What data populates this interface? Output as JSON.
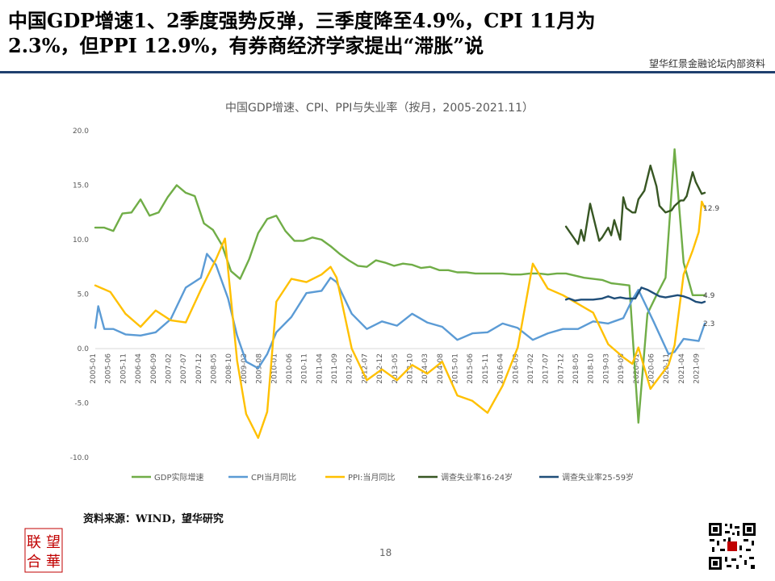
{
  "header": {
    "title_line1": "中国GDP增速1、2季度强势反弹，三季度降至4.9%，CPI 11月为",
    "title_line2": "2.3%，但PPI 12.9%，有券商经济学家提出“滞胀”说",
    "watermark": "望华红景金融论坛内部资料"
  },
  "footer": {
    "source": "资料来源：WIND，望华研究",
    "page_number": "18",
    "logo_text": [
      "联",
      "望",
      "合",
      "華"
    ]
  },
  "colors": {
    "gdp": "#70ad47",
    "cpi": "#5b9bd5",
    "ppi": "#ffc000",
    "youth": "#375623",
    "adult": "#1f4e79",
    "rule": "#1f3f6e",
    "seal": "#c00000"
  },
  "chart_data": {
    "type": "line",
    "title": "中国GDP增速、CPI、PPI与失业率（按月，2005-2021.11）",
    "ylim": [
      -10,
      20
    ],
    "yticks": [
      "20.0",
      "15.0",
      "10.0",
      "5.0",
      "0.0",
      "-5.0",
      "-10.0"
    ],
    "grid": false,
    "legend_position": "bottom",
    "x_start": "2005-01",
    "x_end": "2021-11",
    "x_tick_labels": [
      "2005-01",
      "2005-06",
      "2005-11",
      "2006-04",
      "2006-09",
      "2007-02",
      "2007-07",
      "2007-12",
      "2008-05",
      "2008-10",
      "2009-03",
      "2009-08",
      "2010-01",
      "2010-06",
      "2010-11",
      "2011-04",
      "2011-09",
      "2012-02",
      "2012-07",
      "2012-12",
      "2013-05",
      "2013-10",
      "2014-03",
      "2014-08",
      "2015-01",
      "2015-06",
      "2015-11",
      "2016-04",
      "2016-09",
      "2017-02",
      "2017-07",
      "2017-12",
      "2018-05",
      "2018-10",
      "2019-03",
      "2019-08",
      "2020-01",
      "2020-06",
      "2020-11",
      "2021-04",
      "2021-09"
    ],
    "series": [
      {
        "name": "GDP实际增速",
        "x": [
          "2005-01",
          "2005-04",
          "2005-07",
          "2005-10",
          "2006-01",
          "2006-04",
          "2006-07",
          "2006-10",
          "2007-01",
          "2007-04",
          "2007-07",
          "2007-10",
          "2008-01",
          "2008-04",
          "2008-07",
          "2008-10",
          "2009-01",
          "2009-04",
          "2009-07",
          "2009-10",
          "2010-01",
          "2010-04",
          "2010-07",
          "2010-10",
          "2011-01",
          "2011-04",
          "2011-07",
          "2011-10",
          "2012-01",
          "2012-04",
          "2012-07",
          "2012-10",
          "2013-01",
          "2013-04",
          "2013-07",
          "2013-10",
          "2014-01",
          "2014-04",
          "2014-07",
          "2014-10",
          "2015-01",
          "2015-04",
          "2015-07",
          "2015-10",
          "2016-01",
          "2016-04",
          "2016-07",
          "2016-10",
          "2017-01",
          "2017-04",
          "2017-07",
          "2017-10",
          "2018-01",
          "2018-04",
          "2018-07",
          "2018-10",
          "2019-01",
          "2019-04",
          "2019-07",
          "2019-10",
          "2020-01",
          "2020-04",
          "2020-07",
          "2020-10",
          "2021-01",
          "2021-04",
          "2021-07",
          "2021-10",
          "2021-11"
        ],
        "values": [
          11.1,
          11.1,
          10.8,
          12.4,
          12.5,
          13.7,
          12.2,
          12.5,
          13.9,
          15.0,
          14.3,
          14.0,
          11.5,
          10.9,
          9.5,
          7.1,
          6.4,
          8.2,
          10.6,
          11.9,
          12.2,
          10.8,
          9.9,
          9.9,
          10.2,
          10.0,
          9.4,
          8.7,
          8.1,
          7.6,
          7.5,
          8.1,
          7.9,
          7.6,
          7.8,
          7.7,
          7.4,
          7.5,
          7.2,
          7.2,
          7.0,
          7.0,
          6.9,
          6.9,
          6.9,
          6.9,
          6.8,
          6.8,
          6.9,
          6.9,
          6.8,
          6.9,
          6.9,
          6.7,
          6.5,
          6.4,
          6.3,
          6.0,
          5.9,
          5.8,
          -6.8,
          3.2,
          4.9,
          6.5,
          18.3,
          7.9,
          4.9,
          4.9,
          4.9
        ],
        "end_label": "4.9"
      },
      {
        "name": "CPI当月同比",
        "x": [
          "2005-01",
          "2005-02",
          "2005-04",
          "2005-07",
          "2005-11",
          "2006-04",
          "2006-09",
          "2007-02",
          "2007-07",
          "2007-12",
          "2008-02",
          "2008-05",
          "2008-09",
          "2008-12",
          "2009-03",
          "2009-07",
          "2009-10",
          "2010-01",
          "2010-06",
          "2010-11",
          "2011-04",
          "2011-07",
          "2011-09",
          "2012-02",
          "2012-07",
          "2012-12",
          "2013-05",
          "2013-10",
          "2014-03",
          "2014-08",
          "2015-01",
          "2015-06",
          "2015-11",
          "2016-04",
          "2016-09",
          "2017-02",
          "2017-07",
          "2017-12",
          "2018-05",
          "2018-10",
          "2019-03",
          "2019-08",
          "2019-11",
          "2020-01",
          "2020-06",
          "2020-11",
          "2021-01",
          "2021-04",
          "2021-09",
          "2021-11"
        ],
        "values": [
          1.9,
          3.9,
          1.8,
          1.8,
          1.3,
          1.2,
          1.5,
          2.7,
          5.6,
          6.5,
          8.7,
          7.7,
          4.6,
          1.2,
          -1.2,
          -1.8,
          -0.5,
          1.5,
          2.9,
          5.1,
          5.3,
          6.5,
          6.1,
          3.2,
          1.8,
          2.5,
          2.1,
          3.2,
          2.4,
          2.0,
          0.8,
          1.4,
          1.5,
          2.3,
          1.9,
          0.8,
          1.4,
          1.8,
          1.8,
          2.5,
          2.3,
          2.8,
          4.5,
          5.4,
          2.5,
          -0.5,
          -0.3,
          0.9,
          0.7,
          2.3
        ],
        "end_label": "2.3"
      },
      {
        "name": "PPI:当月同比",
        "x": [
          "2005-01",
          "2005-06",
          "2005-11",
          "2006-04",
          "2006-09",
          "2007-02",
          "2007-07",
          "2007-12",
          "2008-05",
          "2008-08",
          "2008-12",
          "2009-03",
          "2009-07",
          "2009-10",
          "2010-01",
          "2010-06",
          "2010-11",
          "2011-04",
          "2011-07",
          "2011-09",
          "2012-02",
          "2012-07",
          "2012-12",
          "2013-05",
          "2013-10",
          "2014-03",
          "2014-08",
          "2015-01",
          "2015-06",
          "2015-11",
          "2016-04",
          "2016-09",
          "2017-02",
          "2017-07",
          "2017-12",
          "2018-05",
          "2018-10",
          "2019-03",
          "2019-08",
          "2019-11",
          "2020-01",
          "2020-05",
          "2020-11",
          "2021-01",
          "2021-04",
          "2021-07",
          "2021-09",
          "2021-10",
          "2021-11"
        ],
        "values": [
          5.8,
          5.2,
          3.2,
          2.0,
          3.5,
          2.6,
          2.4,
          5.4,
          8.2,
          10.1,
          -1.1,
          -6.0,
          -8.2,
          -5.8,
          4.3,
          6.4,
          6.1,
          6.8,
          7.5,
          6.5,
          0.0,
          -2.9,
          -1.9,
          -2.9,
          -1.5,
          -2.3,
          -1.2,
          -4.3,
          -4.8,
          -5.9,
          -3.4,
          0.1,
          7.8,
          5.5,
          4.9,
          4.1,
          3.3,
          0.4,
          -0.8,
          -1.4,
          0.1,
          -3.7,
          -1.5,
          0.3,
          6.8,
          9.0,
          10.7,
          13.5,
          12.9
        ],
        "end_label": "12.9"
      },
      {
        "name": "调查失业率16-24岁",
        "x": [
          "2018-01",
          "2018-04",
          "2018-05",
          "2018-06",
          "2018-07",
          "2018-09",
          "2018-12",
          "2019-01",
          "2019-03",
          "2019-04",
          "2019-05",
          "2019-07",
          "2019-08",
          "2019-09",
          "2019-11",
          "2019-12",
          "2020-01",
          "2020-03",
          "2020-05",
          "2020-07",
          "2020-08",
          "2020-10",
          "2020-12",
          "2021-01",
          "2021-03",
          "2021-04",
          "2021-05",
          "2021-07",
          "2021-08",
          "2021-10",
          "2021-11"
        ],
        "values": [
          11.2,
          10.0,
          9.6,
          10.9,
          9.9,
          13.3,
          9.9,
          10.2,
          11.1,
          10.4,
          11.8,
          10.0,
          13.9,
          12.9,
          12.5,
          12.5,
          13.7,
          14.5,
          16.8,
          14.9,
          13.1,
          12.5,
          12.7,
          13.1,
          13.6,
          13.6,
          14.0,
          16.2,
          15.3,
          14.2,
          14.3
        ]
      },
      {
        "name": "调查失业率25-59岁",
        "x": [
          "2018-01",
          "2018-02",
          "2018-04",
          "2018-06",
          "2018-08",
          "2018-10",
          "2019-01",
          "2019-03",
          "2019-05",
          "2019-07",
          "2019-09",
          "2019-12",
          "2020-02",
          "2020-04",
          "2020-06",
          "2020-08",
          "2020-10",
          "2020-12",
          "2021-02",
          "2021-04",
          "2021-06",
          "2021-08",
          "2021-10",
          "2021-11"
        ],
        "values": [
          4.5,
          4.6,
          4.4,
          4.5,
          4.5,
          4.5,
          4.6,
          4.8,
          4.6,
          4.7,
          4.6,
          4.6,
          5.6,
          5.4,
          5.1,
          4.8,
          4.7,
          4.8,
          4.9,
          4.8,
          4.6,
          4.3,
          4.2,
          4.3
        ]
      }
    ]
  }
}
